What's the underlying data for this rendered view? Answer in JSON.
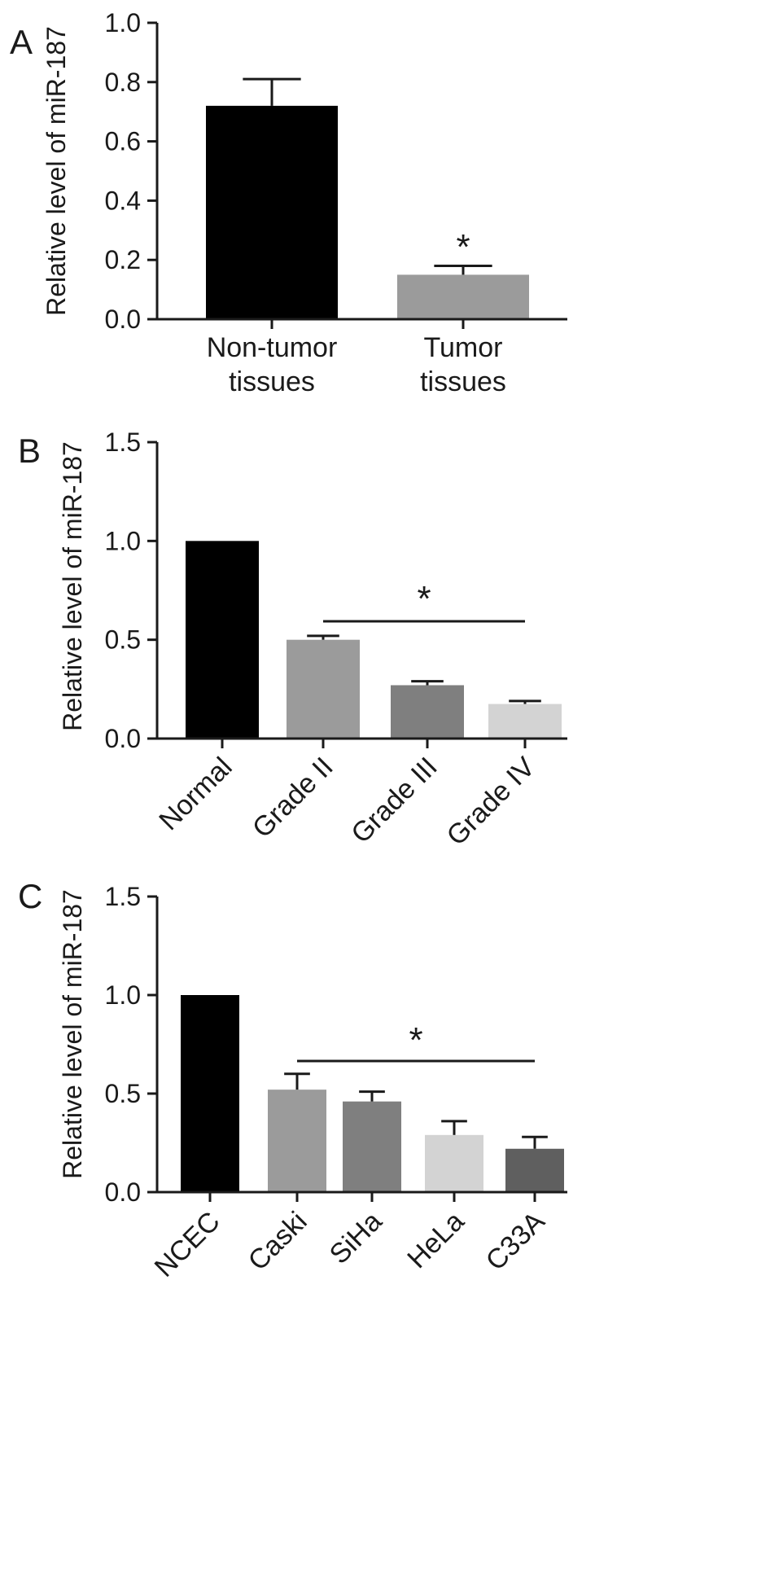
{
  "chart_data": [
    {
      "panel": "A",
      "type": "bar",
      "ylabel": "Relative level of miR-187",
      "ylim": [
        0,
        1.0
      ],
      "yticks": [
        "0.0",
        "0.2",
        "0.4",
        "0.6",
        "0.8",
        "1.0"
      ],
      "categories": [
        [
          "Non-tumor",
          "tissues"
        ],
        [
          "Tumor",
          "tissues"
        ]
      ],
      "values": [
        0.72,
        0.15
      ],
      "errors": [
        0.09,
        0.03
      ],
      "colors": [
        "#000000",
        "#9b9b9b"
      ],
      "significance": "*",
      "grid": false
    },
    {
      "panel": "B",
      "type": "bar",
      "ylabel": "Relative level of miR-187",
      "ylim": [
        0,
        1.5
      ],
      "yticks": [
        "0.0",
        "0.5",
        "1.0",
        "1.5"
      ],
      "categories": [
        "Normal",
        "Grade II",
        "Grade III",
        "Grade IV"
      ],
      "values": [
        1.0,
        0.5,
        0.27,
        0.175
      ],
      "errors": [
        0,
        0.02,
        0.02,
        0.015
      ],
      "colors": [
        "#000000",
        "#9b9b9b",
        "#7f7f7f",
        "#d3d3d3"
      ],
      "significance": "*",
      "grid": false
    },
    {
      "panel": "C",
      "type": "bar",
      "ylabel": "Relative level of miR-187",
      "ylim": [
        0,
        1.5
      ],
      "yticks": [
        "0.0",
        "0.5",
        "1.0",
        "1.5"
      ],
      "categories": [
        "NCEC",
        "Caski",
        "SiHa",
        "HeLa",
        "C33A"
      ],
      "values": [
        1.0,
        0.52,
        0.46,
        0.29,
        0.22
      ],
      "errors": [
        0,
        0.08,
        0.05,
        0.07,
        0.06
      ],
      "colors": [
        "#000000",
        "#9b9b9b",
        "#7f7f7f",
        "#d3d3d3",
        "#5f5f5f"
      ],
      "significance": "*",
      "grid": false
    }
  ]
}
